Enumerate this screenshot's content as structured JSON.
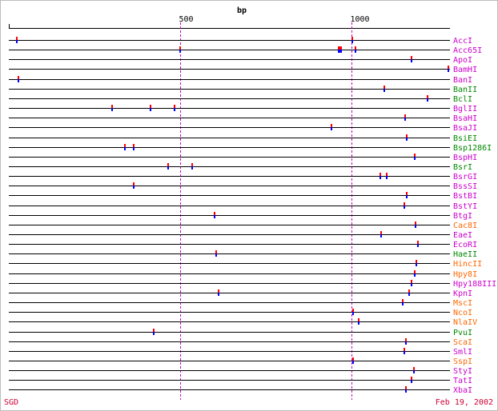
{
  "chart_data": {
    "type": "restriction-map",
    "xlabel": "bp",
    "x_ticks": [
      500,
      1000
    ],
    "colors": {
      "magenta": "#cc00cc",
      "green": "#008800",
      "orange": "#ff6600",
      "tick_top": "#ff0000",
      "tick_bottom": "#0000ff",
      "guide": "#cc00cc"
    },
    "enzymes": [
      {
        "name": "AccI",
        "color": "magenta",
        "sites": [
          20,
          1000
        ]
      },
      {
        "name": "Acc65I",
        "color": "magenta",
        "sites": [
          498,
          961,
          964,
          968,
          1010
        ]
      },
      {
        "name": "ApoI",
        "color": "magenta",
        "sites": [
          1174
        ]
      },
      {
        "name": "BamHI",
        "color": "magenta",
        "sites": [
          1281
        ]
      },
      {
        "name": "BanI",
        "color": "magenta",
        "sites": [
          25
        ]
      },
      {
        "name": "BanII",
        "color": "green",
        "sites": [
          1094
        ]
      },
      {
        "name": "BclI",
        "color": "green",
        "sites": [
          1220
        ]
      },
      {
        "name": "BglII",
        "color": "magenta",
        "sites": [
          300,
          412,
          482
        ]
      },
      {
        "name": "BsaHI",
        "color": "magenta",
        "sites": [
          1155
        ]
      },
      {
        "name": "BsaJI",
        "color": "magenta",
        "sites": [
          940
        ]
      },
      {
        "name": "BsiEI",
        "color": "green",
        "sites": [
          1158
        ]
      },
      {
        "name": "Bsp1286I",
        "color": "green",
        "sites": [
          336,
          361
        ]
      },
      {
        "name": "BspHI",
        "color": "magenta",
        "sites": [
          1183
        ]
      },
      {
        "name": "BsrI",
        "color": "green",
        "sites": [
          462,
          532
        ]
      },
      {
        "name": "BsrGI",
        "color": "magenta",
        "sites": [
          1082,
          1101
        ]
      },
      {
        "name": "BssSI",
        "color": "magenta",
        "sites": [
          361
        ]
      },
      {
        "name": "BstBI",
        "color": "magenta",
        "sites": [
          1158
        ]
      },
      {
        "name": "BstYI",
        "color": "magenta",
        "sites": [
          1152
        ]
      },
      {
        "name": "BtgI",
        "color": "magenta",
        "sites": [
          598
        ]
      },
      {
        "name": "Cac8I",
        "color": "orange",
        "sites": [
          1185
        ]
      },
      {
        "name": "EaeI",
        "color": "magenta",
        "sites": [
          1084
        ]
      },
      {
        "name": "EcoRI",
        "color": "magenta",
        "sites": [
          1191
        ]
      },
      {
        "name": "HaeII",
        "color": "green",
        "sites": [
          603
        ]
      },
      {
        "name": "HincII",
        "color": "orange",
        "sites": [
          1187
        ]
      },
      {
        "name": "Hpy8I",
        "color": "orange",
        "sites": [
          1183
        ]
      },
      {
        "name": "Hpy188III",
        "color": "magenta",
        "sites": [
          1173
        ]
      },
      {
        "name": "KpnI",
        "color": "magenta",
        "sites": [
          610,
          1166
        ]
      },
      {
        "name": "MscI",
        "color": "orange",
        "sites": [
          1148
        ]
      },
      {
        "name": "NcoI",
        "color": "orange",
        "sites": [
          1002
        ]
      },
      {
        "name": "NlaIV",
        "color": "orange",
        "sites": [
          1019
        ]
      },
      {
        "name": "PvuI",
        "color": "green",
        "sites": [
          420
        ]
      },
      {
        "name": "ScaI",
        "color": "orange",
        "sites": [
          1156
        ]
      },
      {
        "name": "SmlI",
        "color": "magenta",
        "sites": [
          1152
        ]
      },
      {
        "name": "SspI",
        "color": "orange",
        "sites": [
          1002
        ]
      },
      {
        "name": "StyI",
        "color": "magenta",
        "sites": [
          1180
        ]
      },
      {
        "name": "TatI",
        "color": "magenta",
        "sites": [
          1173
        ]
      },
      {
        "name": "XbaI",
        "color": "magenta",
        "sites": [
          1156
        ]
      }
    ]
  },
  "footer": {
    "source": "SGD",
    "date": "Feb 19, 2002"
  }
}
